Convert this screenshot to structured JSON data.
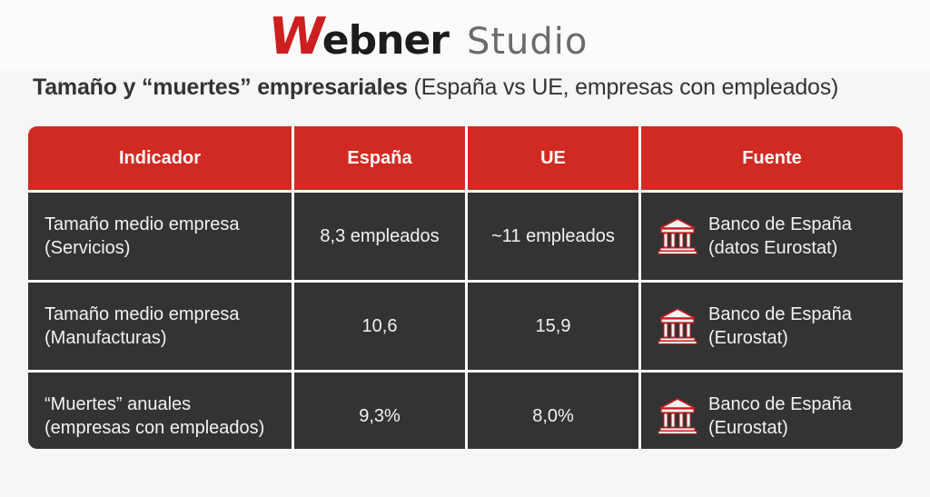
{
  "brand": {
    "logo_w": "W",
    "logo_ebner": "ebner",
    "logo_studio": "Studio",
    "accent": "#cc1f1f"
  },
  "subtitle": {
    "bold": "Tamaño y “muertes” empresariales",
    "normal": " (España vs UE, empresas con empleados)"
  },
  "table": {
    "headers": [
      "Indicador",
      "España",
      "UE",
      "Fuente"
    ],
    "header_color": "#d12a22",
    "row_color": "#333333",
    "rows": [
      {
        "indicator": [
          "Tamaño medio empresa",
          "(Servicios)"
        ],
        "spain": "8,3 empleados",
        "eu": "~11 empleados",
        "source": [
          "Banco de España",
          "(datos Eurostat)"
        ],
        "source_icon": "bank-building-icon"
      },
      {
        "indicator": [
          "Tamaño medio empresa",
          "(Manufacturas)"
        ],
        "spain": "10,6",
        "eu": "15,9",
        "source": [
          "Banco de España",
          "(Eurostat)"
        ],
        "source_icon": "bank-building-icon"
      },
      {
        "indicator": [
          "“Muertes” anuales",
          "(empresas con empleados)"
        ],
        "spain": "9,3%",
        "eu": "8,0%",
        "source": [
          "Banco de España",
          "(Eurostat)"
        ],
        "source_icon": "bank-building-icon"
      }
    ]
  }
}
